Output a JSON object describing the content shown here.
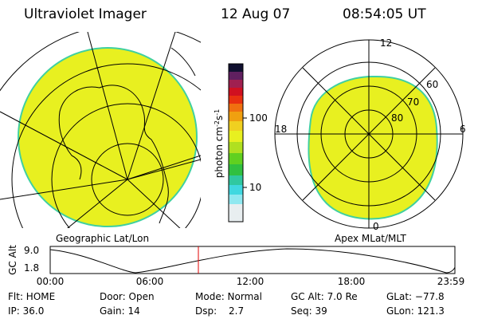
{
  "header": {
    "title": "Ultraviolet Imager",
    "date": "12 Aug 07",
    "time": "08:54:05 UT"
  },
  "colorbar": {
    "label": [
      "photon cm",
      "-2",
      "s",
      "-1"
    ],
    "ticks": [
      "100",
      "10"
    ]
  },
  "polar": {
    "mlt": [
      "12",
      "18",
      "6",
      "0"
    ],
    "mlat": [
      "60",
      "70",
      "80"
    ]
  },
  "captions": {
    "left": "Geographic Lat/Lon",
    "right": "Apex MLat/MLT"
  },
  "altitude": {
    "label": "GC Alt",
    "ticks": [
      "9.0",
      "1.8"
    ],
    "times": [
      "00:00",
      "06:00",
      "12:00",
      "18:00",
      "23:59"
    ]
  },
  "info": {
    "rows": [
      [
        "Flt: HOME",
        "Door: Open",
        "Mode: Normal",
        "GC Alt: 7.0 Re",
        "GLat: −77.8"
      ],
      [
        "IP: 36.0",
        "Gain: 14",
        "Dsp:",
        "Seq: 39",
        "GLon: 121.3"
      ]
    ],
    "dsp_value": "2.7"
  }
}
